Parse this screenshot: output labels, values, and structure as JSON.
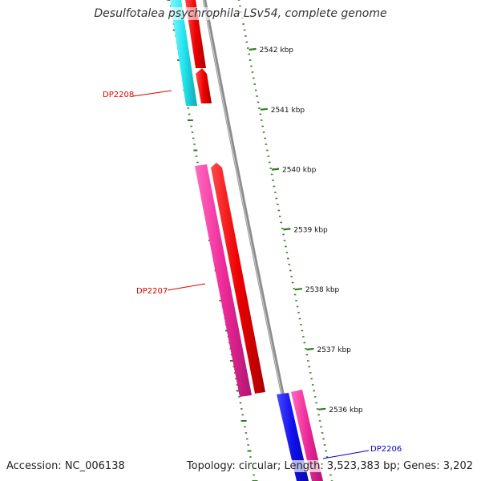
{
  "title": "Desulfotalea psychrophila LSv54, complete genome",
  "footer": {
    "accession": "Accession: NC_006138",
    "summary": "Topology: circular; Length: 3,523,383 bp; Genes: 3,202"
  },
  "colors": {
    "backbone": "#8c8c8c",
    "tick": "#2e7d1e",
    "cyan": "#22e6f0",
    "red": "#ee0000",
    "pink": "#ee2a9a",
    "blue": "#1010ee",
    "label_red": "#dd0000",
    "label_blue": "#0000dd"
  },
  "ticks": [
    {
      "kbp": 2542,
      "label": "2542 kbp"
    },
    {
      "kbp": 2541,
      "label": "2541 kbp"
    },
    {
      "kbp": 2540,
      "label": "2540 kbp"
    },
    {
      "kbp": 2539,
      "label": "2539 kbp"
    },
    {
      "kbp": 2538,
      "label": "2538 kbp"
    },
    {
      "kbp": 2537,
      "label": "2537 kbp"
    },
    {
      "kbp": 2536,
      "label": "2536 kbp"
    }
  ],
  "labels": [
    {
      "text": "DP2208",
      "color": "label_red"
    },
    {
      "text": "DP2207",
      "color": "label_red"
    },
    {
      "text": "DP2206",
      "color": "label_blue"
    }
  ]
}
